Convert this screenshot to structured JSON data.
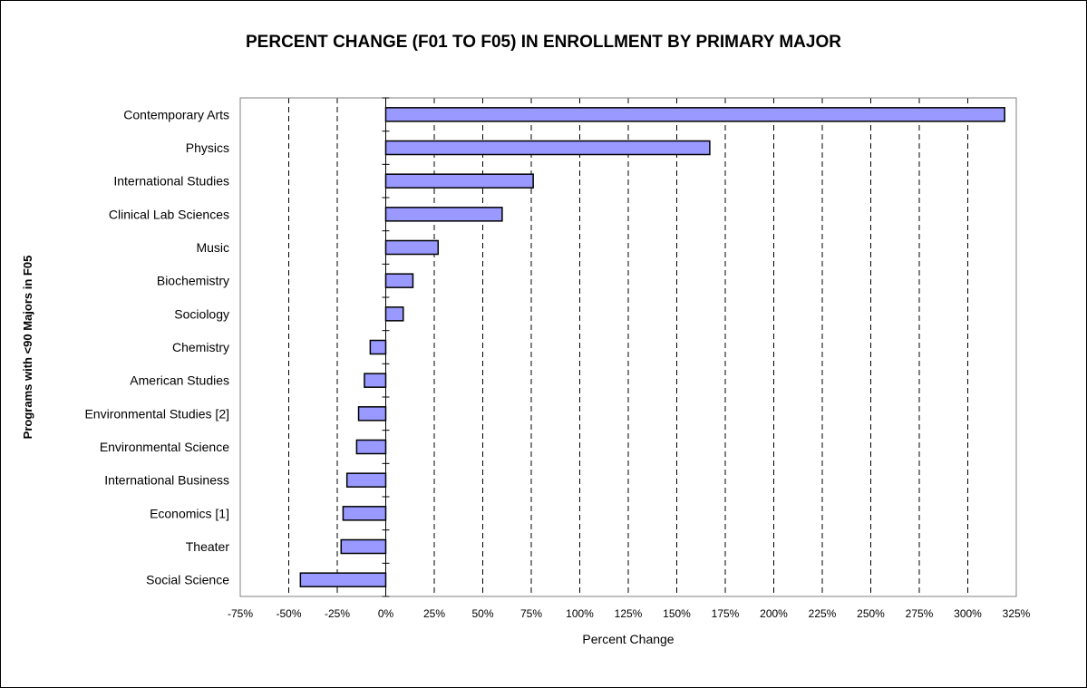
{
  "chart_data": {
    "type": "bar",
    "orientation": "horizontal",
    "title": "PERCENT CHANGE (F01 TO F05) IN ENROLLMENT BY PRIMARY MAJOR",
    "xlabel": "Percent Change",
    "ylabel": "Programs with <90 Majors in F05",
    "xlim": [
      -75,
      325
    ],
    "x_tick_step": 25,
    "x_tick_suffix": "%",
    "grid": "vertical dashed",
    "bar_color": "#9999ff",
    "categories": [
      "Contemporary Arts",
      "Physics",
      "International Studies",
      "Clinical Lab Sciences",
      "Music",
      "Biochemistry",
      "Sociology",
      "Chemistry",
      "American Studies",
      "Environmental Studies [2]",
      "Environmental Science",
      "International Business",
      "Economics [1]",
      "Theater",
      "Social Science"
    ],
    "values": [
      319,
      167,
      76,
      60,
      27,
      14,
      9,
      -8,
      -11,
      -14,
      -15,
      -20,
      -22,
      -23,
      -44
    ]
  }
}
